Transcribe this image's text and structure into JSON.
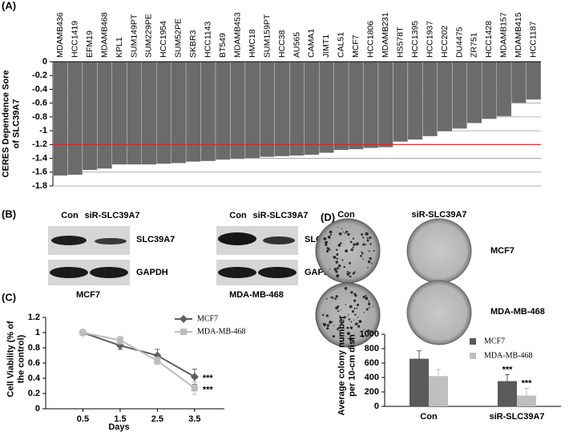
{
  "panel_labels": [
    "(A)",
    "(B)",
    "(C)",
    "(D)"
  ],
  "chart_data": [
    {
      "type": "bar",
      "categories": [
        "MDAMB436",
        "HCC1419",
        "EFM19",
        "MDAMB468",
        "KPL1",
        "SUM149PT",
        "SUM229PE",
        "HCC1954",
        "SUM52PE",
        "SKBR3",
        "HCC1143",
        "BT549",
        "MDAMB453",
        "HMC18",
        "SUM159PT",
        "HCC38",
        "AU565",
        "CAMA1",
        "JIMT1",
        "CAL51",
        "MCF7",
        "HCC1806",
        "MDAMB231",
        "HS578T",
        "HCC1395",
        "HCC1937",
        "HCC202",
        "DU4475",
        "ZR751",
        "HCC1428",
        "MDAMB157",
        "MDAMB415",
        "HCC1187"
      ],
      "values": [
        -1.65,
        -1.64,
        -1.57,
        -1.55,
        -1.49,
        -1.49,
        -1.49,
        -1.48,
        -1.47,
        -1.45,
        -1.44,
        -1.42,
        -1.41,
        -1.4,
        -1.38,
        -1.37,
        -1.36,
        -1.35,
        -1.32,
        -1.28,
        -1.27,
        -1.25,
        -1.24,
        -1.16,
        -1.13,
        -1.08,
        -1.01,
        -0.97,
        -0.89,
        -0.83,
        -0.79,
        -0.6,
        -0.55
      ],
      "color": "#6b6b6b",
      "ylim": [
        -1.8,
        0
      ],
      "yticks": [
        0,
        -0.2,
        -0.4,
        -0.6,
        -0.8,
        -1,
        -1.2,
        -1.4,
        -1.6,
        -1.8
      ],
      "grid": true,
      "reference_line": {
        "value": -1.2,
        "color": "#e02020"
      },
      "y_label": [
        "CERES Dependence Sore",
        "of SLC39A7"
      ]
    },
    {
      "type": "line",
      "x": [
        0.5,
        1.5,
        2.5,
        3.5
      ],
      "xlim": [
        -0.5,
        4.3
      ],
      "xticks": [
        0.5,
        1.5,
        2.5,
        3.5
      ],
      "ylim": [
        0,
        1.2
      ],
      "yticks": [
        0,
        0.2,
        0.4,
        0.6,
        0.8,
        1,
        1.2
      ],
      "x_label": "Days",
      "y_label": [
        "Cell Viability (% of",
        "the control)"
      ],
      "series": [
        {
          "name": "MCF7",
          "color": "#5f5f5f",
          "marker": "diamond",
          "values": [
            1,
            0.83,
            0.7,
            0.42
          ],
          "errors": [
            0.02,
            0.05,
            0.08,
            0.1
          ],
          "significance": [
            null,
            null,
            null,
            "***"
          ]
        },
        {
          "name": "MDA-MB-468",
          "color": "#bdbdbd",
          "marker": "square",
          "values": [
            1,
            0.9,
            0.63,
            0.27
          ],
          "errors": [
            0.02,
            0.05,
            0.05,
            0.08
          ],
          "significance": [
            null,
            null,
            null,
            "***"
          ]
        }
      ]
    },
    {
      "type": "grouped_bar",
      "categories": [
        "Con",
        "siR-SLC39A7"
      ],
      "ylim": [
        0,
        1000
      ],
      "yticks": [
        0,
        200,
        400,
        600,
        800,
        1000
      ],
      "y_label": [
        "Average colony number",
        "per 10-cm dish"
      ],
      "series": [
        {
          "name": "MCF7",
          "color": "#5a5a5a",
          "values": [
            660,
            350
          ],
          "errors": [
            110,
            90
          ],
          "significance": [
            null,
            "***"
          ]
        },
        {
          "name": "MDA-MB-468",
          "color": "#bfbfbf",
          "values": [
            420,
            150
          ],
          "errors": [
            90,
            100
          ],
          "significance": [
            null,
            "***"
          ]
        }
      ]
    }
  ],
  "blots": [
    {
      "lanes": [
        "Con",
        "siR-SLC39A7"
      ],
      "bands": [
        "SLC39A7",
        "GAPDH"
      ],
      "cell_line": "MCF7"
    },
    {
      "lanes": [
        "Con",
        "siR-SLC39A7"
      ],
      "bands": [
        "SLC39A7",
        "GAPDH"
      ],
      "cell_line": "MDA-MB-468"
    }
  ],
  "colonies": {
    "columns": [
      "Con",
      "siR-SLC39A7"
    ],
    "rows": [
      "MCF7",
      "MDA-MB-468"
    ]
  }
}
